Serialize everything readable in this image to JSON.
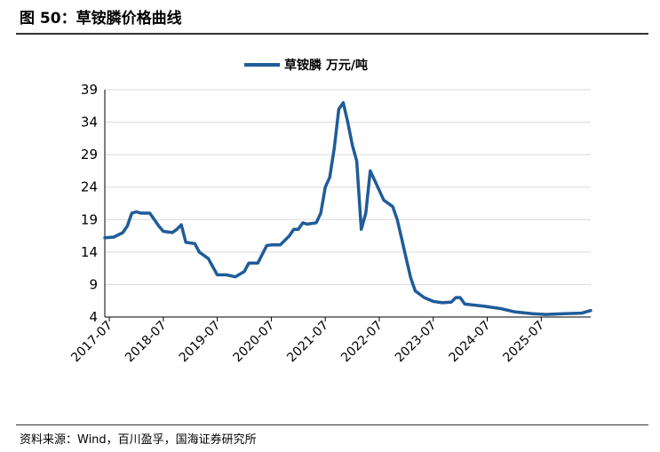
{
  "header": {
    "title": "图 50：草铵膦价格曲线"
  },
  "footer": {
    "source": "资料来源：Wind，百川盈孚，国海证券研究所"
  },
  "chart_data": {
    "type": "line",
    "title": "",
    "xlabel": "",
    "ylabel": "",
    "ylim": [
      4,
      39
    ],
    "yticks": [
      4,
      9,
      14,
      19,
      24,
      29,
      34,
      39
    ],
    "xlim": [
      "2017-06",
      "2026-06"
    ],
    "xticks": [
      "2017-07",
      "2018-07",
      "2019-07",
      "2020-07",
      "2021-07",
      "2022-07",
      "2023-07",
      "2024-07",
      "2025-07"
    ],
    "grid": "horizontal",
    "legend": "top-center",
    "line_color": "#1F5C99",
    "series": [
      {
        "name": "草铵膦 万元/吨",
        "points": [
          [
            "2017-06",
            16.2
          ],
          [
            "2017-08",
            16.3
          ],
          [
            "2017-10",
            17.0
          ],
          [
            "2017-11",
            18.0
          ],
          [
            "2017-12",
            20.0
          ],
          [
            "2018-01",
            20.2
          ],
          [
            "2018-02",
            20.0
          ],
          [
            "2018-04",
            20.0
          ],
          [
            "2018-05",
            19.0
          ],
          [
            "2018-06",
            18.0
          ],
          [
            "2018-07",
            17.2
          ],
          [
            "2018-09",
            17.0
          ],
          [
            "2018-10",
            17.5
          ],
          [
            "2018-11",
            18.2
          ],
          [
            "2018-12",
            15.5
          ],
          [
            "2019-02",
            15.3
          ],
          [
            "2019-03",
            14.0
          ],
          [
            "2019-05",
            13.0
          ],
          [
            "2019-07",
            10.5
          ],
          [
            "2019-09",
            10.5
          ],
          [
            "2019-11",
            10.2
          ],
          [
            "2020-01",
            11.0
          ],
          [
            "2020-02",
            12.3
          ],
          [
            "2020-04",
            12.3
          ],
          [
            "2020-06",
            15.0
          ],
          [
            "2020-07",
            15.1
          ],
          [
            "2020-09",
            15.1
          ],
          [
            "2020-11",
            16.5
          ],
          [
            "2020-12",
            17.5
          ],
          [
            "2021-01",
            17.5
          ],
          [
            "2021-02",
            18.5
          ],
          [
            "2021-03",
            18.3
          ],
          [
            "2021-05",
            18.5
          ],
          [
            "2021-06",
            20.0
          ],
          [
            "2021-07",
            24.0
          ],
          [
            "2021-08",
            25.5
          ],
          [
            "2021-09",
            30.0
          ],
          [
            "2021-10",
            36.0
          ],
          [
            "2021-11",
            37.0
          ],
          [
            "2021-12",
            34.0
          ],
          [
            "2022-01",
            30.5
          ],
          [
            "2022-02",
            28.0
          ],
          [
            "2022-03",
            17.5
          ],
          [
            "2022-04",
            20.0
          ],
          [
            "2022-05",
            26.5
          ],
          [
            "2022-06",
            25.0
          ],
          [
            "2022-08",
            22.0
          ],
          [
            "2022-10",
            21.0
          ],
          [
            "2022-11",
            19.0
          ],
          [
            "2022-12",
            16.0
          ],
          [
            "2023-01",
            13.0
          ],
          [
            "2023-02",
            10.0
          ],
          [
            "2023-03",
            8.0
          ],
          [
            "2023-05",
            7.0
          ],
          [
            "2023-07",
            6.4
          ],
          [
            "2023-09",
            6.2
          ],
          [
            "2023-11",
            6.3
          ],
          [
            "2023-12",
            7.0
          ],
          [
            "2024-01",
            7.0
          ],
          [
            "2024-02",
            6.0
          ],
          [
            "2024-06",
            5.7
          ],
          [
            "2024-10",
            5.3
          ],
          [
            "2025-01",
            4.8
          ],
          [
            "2025-05",
            4.5
          ],
          [
            "2025-08",
            4.4
          ],
          [
            "2025-12",
            4.5
          ],
          [
            "2026-04",
            4.6
          ],
          [
            "2026-06",
            5.0
          ]
        ]
      }
    ]
  }
}
